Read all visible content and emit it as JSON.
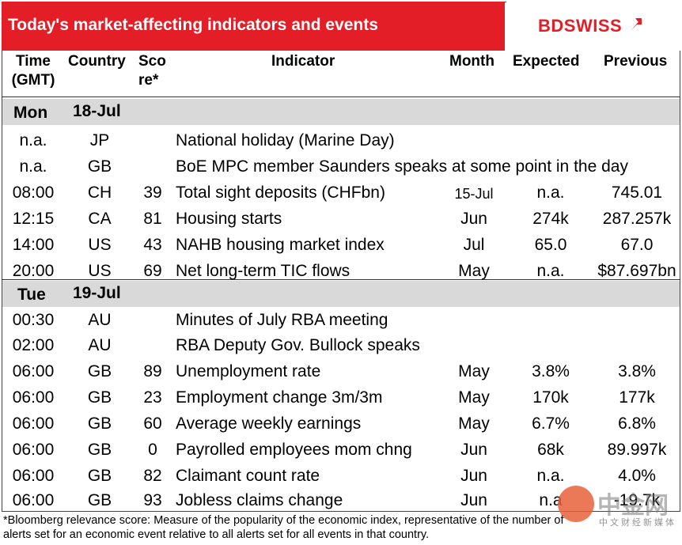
{
  "title": "Today's market-affecting indicators and events",
  "logo": {
    "text_bd": "BD",
    "text_swiss": "SWISS"
  },
  "headers": {
    "time_1": "Time",
    "time_2": "(GMT)",
    "country": "Country",
    "score_1": "Sco",
    "score_2": "re*",
    "indicator": "Indicator",
    "month": "Month",
    "expected": "Expected",
    "previous": "Previous"
  },
  "days": [
    {
      "day": "Mon",
      "date": "18-Jul",
      "rows": [
        {
          "time": "n.a.",
          "country": "JP",
          "score": "",
          "indicator": "National holiday (Marine Day)",
          "month": "",
          "expected": "",
          "previous": ""
        },
        {
          "time": "n.a.",
          "country": "GB",
          "score": "",
          "indicator": "BoE MPC member Saunders speaks at some point in the day",
          "month": "",
          "expected": "",
          "previous": ""
        },
        {
          "time": "08:00",
          "country": "CH",
          "score": "39",
          "indicator": "Total sight deposits (CHFbn)",
          "month": "15-Jul",
          "expected": "n.a.",
          "previous": "745.01"
        },
        {
          "time": "12:15",
          "country": "CA",
          "score": "81",
          "indicator": "Housing starts",
          "month": "Jun",
          "expected": "274k",
          "previous": "287.257k"
        },
        {
          "time": "14:00",
          "country": "US",
          "score": "43",
          "indicator": "NAHB housing market index",
          "month": "Jul",
          "expected": "65.0",
          "previous": "67.0"
        },
        {
          "time": "20:00",
          "country": "US",
          "score": "69",
          "indicator": "Net long-term TIC flows",
          "month": "May",
          "expected": "n.a.",
          "previous": "$87.697bn"
        }
      ]
    },
    {
      "day": "Tue",
      "date": "19-Jul",
      "rows": [
        {
          "time": "00:30",
          "country": "AU",
          "score": "",
          "indicator": "Minutes of July RBA meeting",
          "month": "",
          "expected": "",
          "previous": ""
        },
        {
          "time": "02:00",
          "country": "AU",
          "score": "",
          "indicator": "RBA Deputy Gov. Bullock speaks",
          "month": "",
          "expected": "",
          "previous": ""
        },
        {
          "time": "06:00",
          "country": "GB",
          "score": "89",
          "indicator": "Unemployment rate",
          "month": "May",
          "expected": "3.8%",
          "previous": "3.8%"
        },
        {
          "time": "06:00",
          "country": "GB",
          "score": "23",
          "indicator": "Employment change 3m/3m",
          "month": "May",
          "expected": "170k",
          "previous": "177k"
        },
        {
          "time": "06:00",
          "country": "GB",
          "score": "60",
          "indicator": "Average weekly earnings",
          "month": "May",
          "expected": "6.7%",
          "previous": "6.8%"
        },
        {
          "time": "06:00",
          "country": "GB",
          "score": "0",
          "indicator": "Payrolled employees mom chng",
          "month": "Jun",
          "expected": "68k",
          "previous": "89.997k"
        },
        {
          "time": "06:00",
          "country": "GB",
          "score": "82",
          "indicator": "Claimant count rate",
          "month": "Jun",
          "expected": "n.a.",
          "previous": "4.0%"
        },
        {
          "time": "06:00",
          "country": "GB",
          "score": "93",
          "indicator": "Jobless claims change",
          "month": "Jun",
          "expected": "n.a",
          "previous": "-19.7k"
        }
      ]
    }
  ],
  "footer": {
    "line1": "*Bloomberg relevance score:  Measure of the popularity of the economic index, representative of the number of",
    "line2": "alerts set for an economic event relative to all alerts set for all events in that country."
  },
  "watermark": {
    "big": "中金网",
    "small": "中文财经新媒体"
  },
  "colors": {
    "title_bg": "#e41e26",
    "day_bg": "#d9d9d9",
    "logo_red": "#e41e26"
  }
}
